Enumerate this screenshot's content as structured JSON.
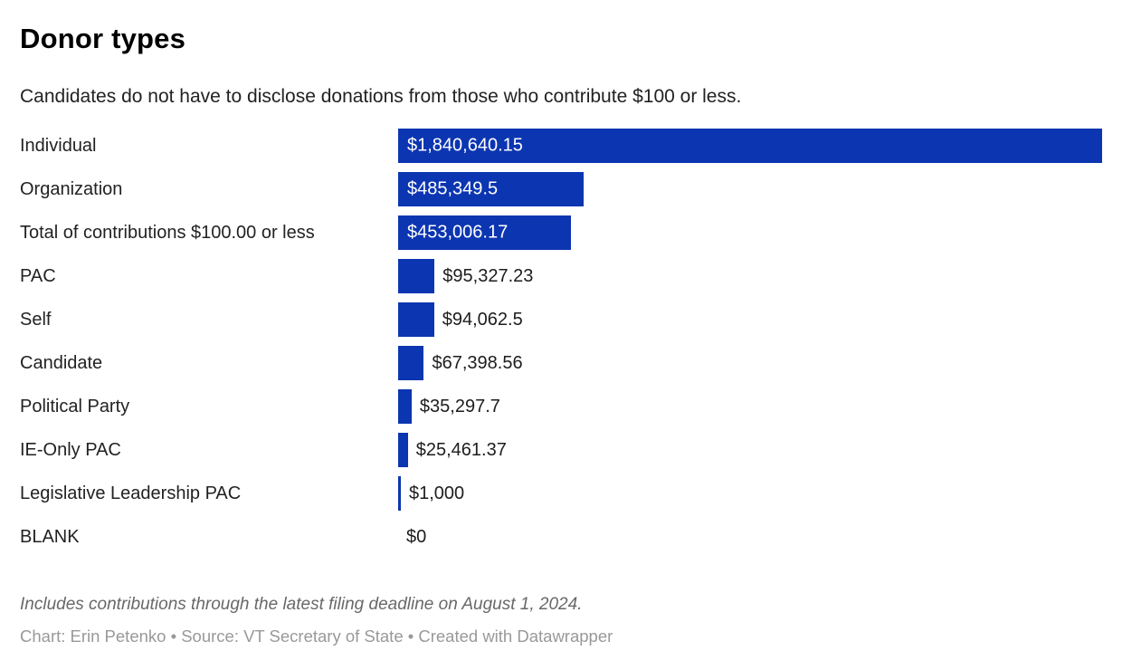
{
  "header": {
    "title": "Donor types",
    "subtitle": "Candidates do not have to disclose donations from those who contribute $100 or less."
  },
  "chart_data": {
    "type": "bar",
    "orientation": "horizontal",
    "title": "Donor types",
    "subtitle": "Candidates do not have to disclose donations from those who contribute $100 or less.",
    "categories": [
      "Individual",
      "Organization",
      "Total of contributions $100.00 or less",
      "PAC",
      "Self",
      "Candidate",
      "Political Party",
      "IE-Only PAC",
      "Legislative Leadership PAC",
      "BLANK"
    ],
    "values": [
      1840640.15,
      485349.5,
      453006.17,
      95327.23,
      94062.5,
      67398.56,
      35297.7,
      25461.37,
      1000,
      0
    ],
    "value_labels": [
      "$1,840,640.15",
      "$485,349.5",
      "$453,006.17",
      "$95,327.23",
      "$94,062.5",
      "$67,398.56",
      "$35,297.7",
      "$25,461.37",
      "$1,000",
      "$0"
    ],
    "xlabel": "",
    "ylabel": "",
    "xlim": [
      0,
      1840640.15
    ],
    "grid": false,
    "legend": false,
    "colors": {
      "bar": "#0c35b1",
      "value_inside": "#ffffff",
      "value_outside": "#1d1d1d"
    }
  },
  "footer": {
    "footnote": "Includes contributions through the latest filing deadline on August 1, 2024.",
    "credit": "Chart: Erin Petenko • Source: VT Secretary of State • Created with Datawrapper"
  }
}
